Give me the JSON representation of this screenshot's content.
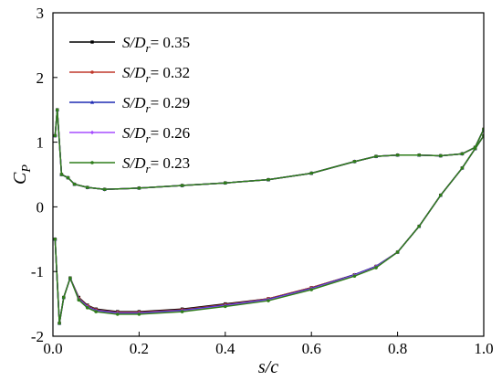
{
  "chart_data": {
    "type": "line",
    "xlabel": "s/c",
    "ylabel_main": "C",
    "ylabel_sub": "P",
    "xlim": [
      0.0,
      1.0
    ],
    "ylim": [
      -2,
      3
    ],
    "xticks": [
      "0.0",
      "0.2",
      "0.4",
      "0.6",
      "0.8",
      "1.0"
    ],
    "yticks": [
      "-2",
      "-1",
      "0",
      "1",
      "2",
      "3"
    ],
    "legend_placement": "top-left",
    "grid": false,
    "series": [
      {
        "name_main": "S/D",
        "name_sub": "r",
        "name_value": "= 0.35",
        "color": "#000000",
        "marker": "square",
        "upper": [
          [
            0.005,
            1.1
          ],
          [
            0.01,
            1.5
          ],
          [
            0.02,
            0.5
          ],
          [
            0.035,
            0.45
          ],
          [
            0.05,
            0.35
          ],
          [
            0.08,
            0.3
          ],
          [
            0.12,
            0.27
          ],
          [
            0.2,
            0.29
          ],
          [
            0.3,
            0.33
          ],
          [
            0.4,
            0.37
          ],
          [
            0.5,
            0.42
          ],
          [
            0.6,
            0.52
          ],
          [
            0.7,
            0.7
          ],
          [
            0.75,
            0.78
          ],
          [
            0.8,
            0.8
          ],
          [
            0.85,
            0.8
          ],
          [
            0.9,
            0.79
          ],
          [
            0.95,
            0.82
          ],
          [
            0.98,
            0.92
          ],
          [
            1.0,
            1.2
          ]
        ],
        "lower": [
          [
            0.005,
            -0.5
          ],
          [
            0.015,
            -1.8
          ],
          [
            0.025,
            -1.4
          ],
          [
            0.04,
            -1.1
          ],
          [
            0.06,
            -1.4
          ],
          [
            0.08,
            -1.52
          ],
          [
            0.1,
            -1.58
          ],
          [
            0.15,
            -1.62
          ],
          [
            0.2,
            -1.62
          ],
          [
            0.3,
            -1.58
          ],
          [
            0.4,
            -1.5
          ],
          [
            0.5,
            -1.42
          ],
          [
            0.6,
            -1.25
          ],
          [
            0.7,
            -1.05
          ],
          [
            0.75,
            -0.92
          ],
          [
            0.8,
            -0.7
          ],
          [
            0.85,
            -0.3
          ],
          [
            0.9,
            0.18
          ],
          [
            0.95,
            0.6
          ],
          [
            0.98,
            0.9
          ],
          [
            1.0,
            1.1
          ]
        ]
      },
      {
        "name_main": "S/D",
        "name_sub": "r",
        "name_value": "= 0.32",
        "color": "#c0392b",
        "marker": "circle",
        "upper": [
          [
            0.005,
            1.1
          ],
          [
            0.01,
            1.5
          ],
          [
            0.02,
            0.5
          ],
          [
            0.035,
            0.45
          ],
          [
            0.05,
            0.35
          ],
          [
            0.08,
            0.3
          ],
          [
            0.12,
            0.27
          ],
          [
            0.2,
            0.29
          ],
          [
            0.3,
            0.33
          ],
          [
            0.4,
            0.37
          ],
          [
            0.5,
            0.42
          ],
          [
            0.6,
            0.52
          ],
          [
            0.7,
            0.7
          ],
          [
            0.75,
            0.78
          ],
          [
            0.8,
            0.8
          ],
          [
            0.85,
            0.8
          ],
          [
            0.9,
            0.79
          ],
          [
            0.95,
            0.82
          ],
          [
            0.98,
            0.92
          ],
          [
            1.0,
            1.2
          ]
        ],
        "lower": [
          [
            0.005,
            -0.5
          ],
          [
            0.015,
            -1.8
          ],
          [
            0.025,
            -1.4
          ],
          [
            0.04,
            -1.1
          ],
          [
            0.06,
            -1.41
          ],
          [
            0.08,
            -1.53
          ],
          [
            0.1,
            -1.59
          ],
          [
            0.15,
            -1.63
          ],
          [
            0.2,
            -1.63
          ],
          [
            0.3,
            -1.59
          ],
          [
            0.4,
            -1.51
          ],
          [
            0.5,
            -1.42
          ],
          [
            0.6,
            -1.25
          ],
          [
            0.7,
            -1.05
          ],
          [
            0.75,
            -0.92
          ],
          [
            0.8,
            -0.7
          ],
          [
            0.85,
            -0.3
          ],
          [
            0.9,
            0.18
          ],
          [
            0.95,
            0.6
          ],
          [
            0.98,
            0.9
          ],
          [
            1.0,
            1.1
          ]
        ]
      },
      {
        "name_main": "S/D",
        "name_sub": "r",
        "name_value": "= 0.29",
        "color": "#1f2bb3",
        "marker": "triangle",
        "upper": [
          [
            0.005,
            1.1
          ],
          [
            0.01,
            1.5
          ],
          [
            0.02,
            0.5
          ],
          [
            0.035,
            0.45
          ],
          [
            0.05,
            0.35
          ],
          [
            0.08,
            0.3
          ],
          [
            0.12,
            0.27
          ],
          [
            0.2,
            0.29
          ],
          [
            0.3,
            0.33
          ],
          [
            0.4,
            0.37
          ],
          [
            0.5,
            0.42
          ],
          [
            0.6,
            0.52
          ],
          [
            0.7,
            0.7
          ],
          [
            0.75,
            0.78
          ],
          [
            0.8,
            0.8
          ],
          [
            0.85,
            0.8
          ],
          [
            0.9,
            0.79
          ],
          [
            0.95,
            0.82
          ],
          [
            0.98,
            0.92
          ],
          [
            1.0,
            1.2
          ]
        ],
        "lower": [
          [
            0.005,
            -0.5
          ],
          [
            0.015,
            -1.8
          ],
          [
            0.025,
            -1.4
          ],
          [
            0.04,
            -1.1
          ],
          [
            0.06,
            -1.42
          ],
          [
            0.08,
            -1.54
          ],
          [
            0.1,
            -1.6
          ],
          [
            0.15,
            -1.64
          ],
          [
            0.2,
            -1.64
          ],
          [
            0.3,
            -1.6
          ],
          [
            0.4,
            -1.52
          ],
          [
            0.5,
            -1.43
          ],
          [
            0.6,
            -1.26
          ],
          [
            0.7,
            -1.05
          ],
          [
            0.75,
            -0.92
          ],
          [
            0.8,
            -0.7
          ],
          [
            0.85,
            -0.3
          ],
          [
            0.9,
            0.18
          ],
          [
            0.95,
            0.6
          ],
          [
            0.98,
            0.9
          ],
          [
            1.0,
            1.1
          ]
        ]
      },
      {
        "name_main": "S/D",
        "name_sub": "r",
        "name_value": "= 0.26",
        "color": "#a64dff",
        "marker": "diamond",
        "upper": [
          [
            0.005,
            1.1
          ],
          [
            0.01,
            1.5
          ],
          [
            0.02,
            0.5
          ],
          [
            0.035,
            0.45
          ],
          [
            0.05,
            0.35
          ],
          [
            0.08,
            0.3
          ],
          [
            0.12,
            0.27
          ],
          [
            0.2,
            0.29
          ],
          [
            0.3,
            0.33
          ],
          [
            0.4,
            0.37
          ],
          [
            0.5,
            0.42
          ],
          [
            0.6,
            0.52
          ],
          [
            0.7,
            0.7
          ],
          [
            0.75,
            0.78
          ],
          [
            0.8,
            0.8
          ],
          [
            0.85,
            0.8
          ],
          [
            0.9,
            0.79
          ],
          [
            0.95,
            0.82
          ],
          [
            0.98,
            0.92
          ],
          [
            1.0,
            1.2
          ]
        ],
        "lower": [
          [
            0.005,
            -0.5
          ],
          [
            0.015,
            -1.8
          ],
          [
            0.025,
            -1.4
          ],
          [
            0.04,
            -1.1
          ],
          [
            0.06,
            -1.43
          ],
          [
            0.08,
            -1.55
          ],
          [
            0.1,
            -1.61
          ],
          [
            0.15,
            -1.65
          ],
          [
            0.2,
            -1.65
          ],
          [
            0.3,
            -1.61
          ],
          [
            0.4,
            -1.53
          ],
          [
            0.5,
            -1.44
          ],
          [
            0.6,
            -1.27
          ],
          [
            0.7,
            -1.06
          ],
          [
            0.75,
            -0.93
          ],
          [
            0.8,
            -0.7
          ],
          [
            0.85,
            -0.3
          ],
          [
            0.9,
            0.18
          ],
          [
            0.95,
            0.6
          ],
          [
            0.98,
            0.9
          ],
          [
            1.0,
            1.1
          ]
        ]
      },
      {
        "name_main": "S/D",
        "name_sub": "r",
        "name_value": "= 0.23",
        "color": "#2e7d1a",
        "marker": "circle",
        "upper": [
          [
            0.005,
            1.1
          ],
          [
            0.01,
            1.5
          ],
          [
            0.02,
            0.5
          ],
          [
            0.035,
            0.45
          ],
          [
            0.05,
            0.35
          ],
          [
            0.08,
            0.3
          ],
          [
            0.12,
            0.27
          ],
          [
            0.2,
            0.29
          ],
          [
            0.3,
            0.33
          ],
          [
            0.4,
            0.37
          ],
          [
            0.5,
            0.42
          ],
          [
            0.6,
            0.52
          ],
          [
            0.7,
            0.7
          ],
          [
            0.75,
            0.78
          ],
          [
            0.8,
            0.8
          ],
          [
            0.85,
            0.8
          ],
          [
            0.9,
            0.79
          ],
          [
            0.95,
            0.82
          ],
          [
            0.98,
            0.92
          ],
          [
            1.0,
            1.2
          ]
        ],
        "lower": [
          [
            0.005,
            -0.5
          ],
          [
            0.015,
            -1.8
          ],
          [
            0.025,
            -1.4
          ],
          [
            0.04,
            -1.1
          ],
          [
            0.06,
            -1.44
          ],
          [
            0.08,
            -1.56
          ],
          [
            0.1,
            -1.62
          ],
          [
            0.15,
            -1.66
          ],
          [
            0.2,
            -1.66
          ],
          [
            0.3,
            -1.62
          ],
          [
            0.4,
            -1.54
          ],
          [
            0.5,
            -1.45
          ],
          [
            0.6,
            -1.28
          ],
          [
            0.7,
            -1.07
          ],
          [
            0.75,
            -0.94
          ],
          [
            0.8,
            -0.7
          ],
          [
            0.85,
            -0.3
          ],
          [
            0.9,
            0.18
          ],
          [
            0.95,
            0.6
          ],
          [
            0.98,
            0.9
          ],
          [
            1.0,
            1.1
          ]
        ]
      }
    ]
  }
}
